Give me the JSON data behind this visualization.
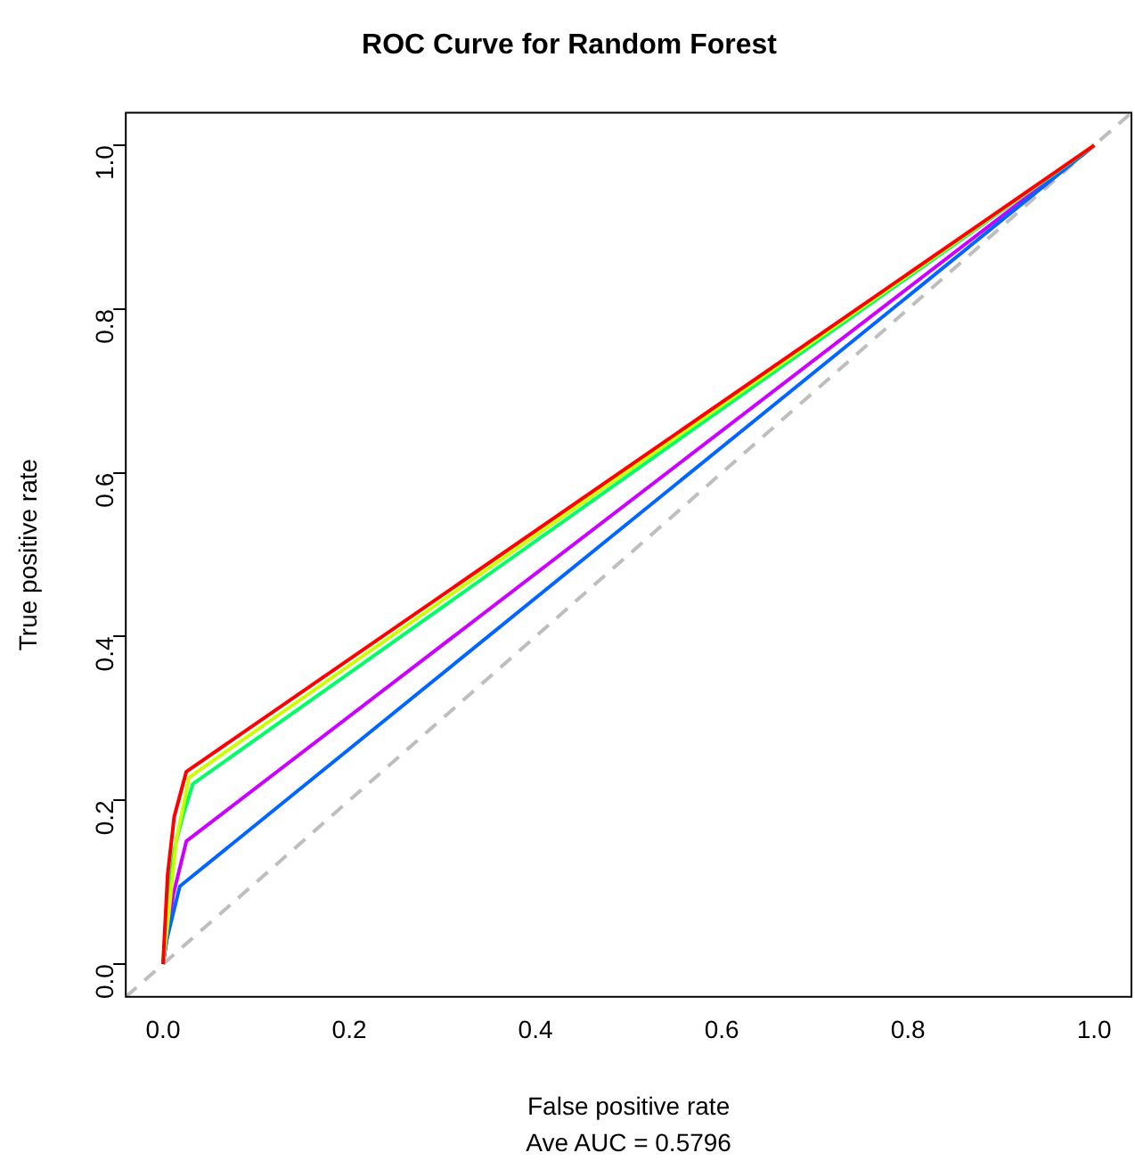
{
  "chart_data": {
    "type": "line",
    "title": "ROC Curve for Random Forest",
    "xlabel": "False positive rate",
    "ylabel": "True positive rate",
    "annotations": [
      "Ave AUC = 0.5796"
    ],
    "xlim": [
      -0.04,
      1.04
    ],
    "ylim": [
      -0.04,
      1.04
    ],
    "xticks": [
      {
        "value": 0,
        "label": "0.0"
      },
      0.2,
      0.4,
      0.6,
      0.8,
      {
        "value": 1,
        "label": "1.0"
      }
    ],
    "yticks": [
      {
        "value": 0,
        "label": "0.0"
      },
      0.2,
      0.4,
      0.6,
      0.8,
      {
        "value": 1,
        "label": "1.0"
      }
    ],
    "grid": false,
    "legend": false,
    "marker": "none",
    "series": [
      {
        "color": "#ff0000",
        "x": [
          0,
          0.005,
          0.012,
          0.025,
          1
        ],
        "values": [
          0,
          0.11,
          0.18,
          0.235,
          1
        ]
      },
      {
        "color": "#ccff00",
        "x": [
          0,
          0.006,
          0.014,
          0.028,
          1
        ],
        "values": [
          0,
          0.06,
          0.15,
          0.228,
          1
        ]
      },
      {
        "color": "#00ff66",
        "x": [
          0,
          0.005,
          0.012,
          0.021,
          0.032,
          1
        ],
        "values": [
          0,
          0.08,
          0.14,
          0.18,
          0.22,
          1
        ]
      },
      {
        "color": "#0066ff",
        "x": [
          0,
          0.004,
          0.018,
          1
        ],
        "values": [
          0,
          0.03,
          0.095,
          1
        ]
      },
      {
        "color": "#cc00ff",
        "x": [
          0,
          0.011,
          0.025,
          1
        ],
        "values": [
          0,
          0.085,
          0.15,
          1
        ]
      },
      {
        "color": "#bebebe",
        "line_style": "dashed",
        "x": [
          -0.04,
          1.04
        ],
        "values": [
          -0.04,
          1.04
        ]
      }
    ]
  }
}
